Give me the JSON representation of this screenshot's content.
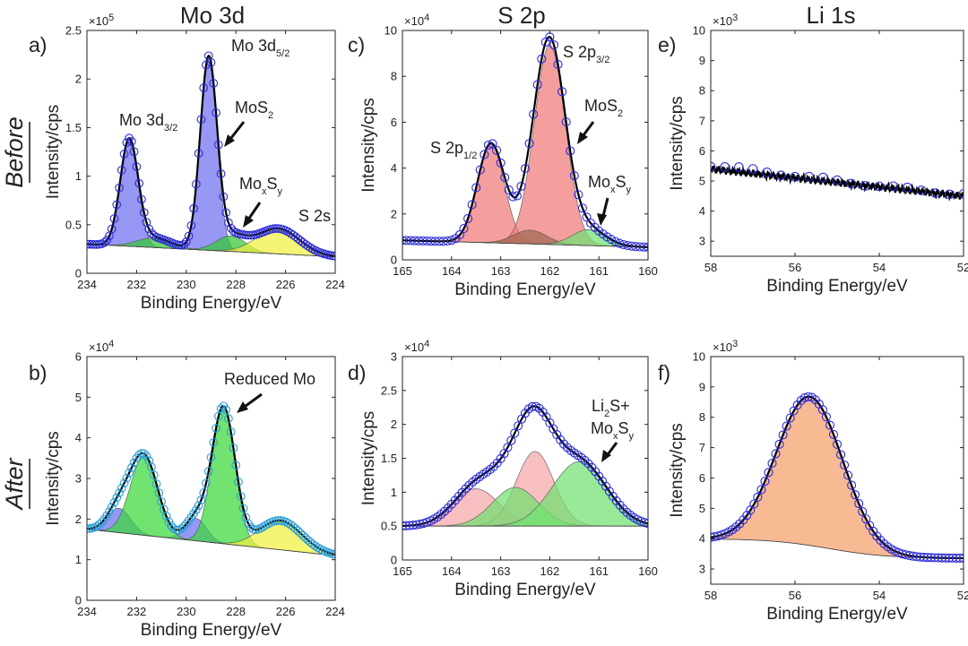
{
  "figure": {
    "column_titles": [
      "Mo 3d",
      "S 2p",
      "Li 1s"
    ],
    "row_labels": [
      "Before",
      "After"
    ],
    "colors": {
      "raw_marker": "#2a2ad8",
      "raw_marker_b": "#2aa0d8",
      "fit": "#000000",
      "mo_blue": "#6f6ff0",
      "mo_green": "#35c835",
      "mo_yellow": "#f0f040",
      "s_red": "#f07878",
      "s_brown": "#a06a50",
      "s_green": "#70e070",
      "s_pink": "#f4a6a6",
      "after_green": "#3ad83a",
      "li_orange": "#f4a06a"
    }
  },
  "chart_data": [
    {
      "id": "a",
      "panel_label": "a)",
      "row": "Before",
      "column": "Mo 3d",
      "type": "area",
      "xlabel": "Binding Energy/eV",
      "ylabel": "Intensity/cps",
      "xlim": [
        234,
        224
      ],
      "xticks": [
        234,
        232,
        230,
        228,
        226,
        224
      ],
      "ylim": [
        0,
        2.5
      ],
      "yticks": [
        0,
        0.5,
        1,
        1.5,
        2,
        2.5
      ],
      "yticklabels": [
        "0",
        "0.5",
        "1",
        "1.5",
        "2",
        "2.5"
      ],
      "y_multiplier": "×10",
      "y_multiplier_exp": "5",
      "baseline": {
        "type": "linear",
        "x": [
          234,
          224
        ],
        "y": [
          0.3,
          0.17
        ]
      },
      "components": [
        {
          "name": "Mo 3d3/2 (MoS2)",
          "color": "mo_blue",
          "center": 232.3,
          "height": 1.08,
          "fwhm": 0.85
        },
        {
          "name": "Mo 3d5/2 (MoS2)",
          "color": "mo_blue",
          "center": 229.1,
          "height": 1.95,
          "fwhm": 0.8
        },
        {
          "name": "Mo 3d3/2 (MoxSy)",
          "color": "mo_green",
          "center": 231.3,
          "height": 0.1,
          "fwhm": 1.6
        },
        {
          "name": "Mo 3d5/2 (MoxSy)",
          "color": "mo_green",
          "center": 228.2,
          "height": 0.16,
          "fwhm": 1.4
        },
        {
          "name": "S 2s",
          "color": "mo_yellow",
          "center": 226.3,
          "height": 0.26,
          "fwhm": 2.0
        }
      ],
      "annotations": [
        {
          "text": "Mo 3d",
          "sub": "3/2"
        },
        {
          "text": "Mo 3d",
          "sub": "5/2"
        },
        {
          "text": "MoS",
          "sub": "2",
          "arrow": true
        },
        {
          "text": "Mo",
          "sub": "x",
          "text2": "S",
          "sub2": "y",
          "arrow": true
        },
        {
          "text": "S 2s"
        }
      ]
    },
    {
      "id": "b",
      "panel_label": "b)",
      "row": "After",
      "column": "Mo 3d",
      "type": "area",
      "xlabel": "Binding Energy/eV",
      "ylabel": "Intensity/cps",
      "xlim": [
        234,
        224
      ],
      "xticks": [
        234,
        232,
        230,
        228,
        226,
        224
      ],
      "ylim": [
        0,
        6
      ],
      "yticks": [
        0,
        1,
        2,
        3,
        4,
        5,
        6
      ],
      "yticklabels": [
        "0",
        "1",
        "2",
        "3",
        "4",
        "5",
        "6"
      ],
      "y_multiplier": "×10",
      "y_multiplier_exp": "4",
      "baseline": {
        "type": "linear",
        "x": [
          234,
          224
        ],
        "y": [
          1.75,
          1.1
        ]
      },
      "components": [
        {
          "name": "Mo 3d3/2 (MoS2)",
          "color": "mo_blue",
          "center": 232.7,
          "height": 0.6,
          "fwhm": 1.1
        },
        {
          "name": "Mo 3d5/2 (MoS2)",
          "color": "mo_blue",
          "center": 229.6,
          "height": 0.55,
          "fwhm": 1.0
        },
        {
          "name": "Mo 3d3/2 (reduced Mo)",
          "color": "after_green",
          "center": 231.7,
          "height": 1.95,
          "fwhm": 1.3
        },
        {
          "name": "Mo 3d5/2 (reduced Mo)",
          "color": "after_green",
          "center": 228.5,
          "height": 3.35,
          "fwhm": 1.1
        },
        {
          "name": "S 2s",
          "color": "mo_yellow",
          "center": 226.2,
          "height": 0.72,
          "fwhm": 2.0
        }
      ],
      "annotations": [
        {
          "text": "Reduced Mo",
          "arrow": true
        }
      ]
    },
    {
      "id": "c",
      "panel_label": "c)",
      "row": "Before",
      "column": "S 2p",
      "type": "area",
      "xlabel": "Binding Energy/eV",
      "ylabel": "Intensity/cps",
      "xlim": [
        165,
        160
      ],
      "xticks": [
        165,
        164,
        163,
        162,
        161,
        160
      ],
      "ylim": [
        0,
        10
      ],
      "yticks": [
        0,
        2,
        4,
        6,
        8,
        10
      ],
      "yticklabels": [
        "0",
        "2",
        "4",
        "6",
        "8",
        "10"
      ],
      "y_multiplier": "×10",
      "y_multiplier_exp": "4",
      "baseline": {
        "type": "linear",
        "x": [
          165,
          160
        ],
        "y": [
          0.85,
          0.55
        ]
      },
      "components": [
        {
          "name": "S 2p1/2 (MoS2)",
          "color": "s_red",
          "center": 163.2,
          "height": 4.3,
          "fwhm": 0.65
        },
        {
          "name": "S 2p3/2 (MoS2)",
          "color": "s_red",
          "center": 162.0,
          "height": 8.7,
          "fwhm": 0.75
        },
        {
          "name": "S 2p (MoxSy)",
          "color": "s_brown",
          "center": 162.4,
          "height": 0.6,
          "fwhm": 0.8
        },
        {
          "name": "S 2p (MoxSy)",
          "color": "s_green",
          "center": 161.2,
          "height": 0.7,
          "fwhm": 0.8
        }
      ],
      "annotations": [
        {
          "text": "S 2p",
          "sub": "1/2"
        },
        {
          "text": "S 2p",
          "sub": "3/2"
        },
        {
          "text": "MoS",
          "sub": "2",
          "arrow": true
        },
        {
          "text": "Mo",
          "sub": "x",
          "text2": "S",
          "sub2": "y",
          "arrow": true
        }
      ]
    },
    {
      "id": "d",
      "panel_label": "d)",
      "row": "After",
      "column": "S 2p",
      "type": "area",
      "xlabel": "Binding Energy/eV",
      "ylabel": "Intensity/cps",
      "xlim": [
        165,
        160
      ],
      "xticks": [
        165,
        164,
        163,
        162,
        161,
        160
      ],
      "ylim": [
        0,
        3
      ],
      "yticks": [
        0,
        0.5,
        1,
        1.5,
        2,
        2.5,
        3
      ],
      "yticklabels": [
        "0",
        "0.5",
        "1",
        "1.5",
        "2",
        "2.5",
        "3"
      ],
      "y_multiplier": "×10",
      "y_multiplier_exp": "4",
      "baseline": {
        "type": "linear",
        "x": [
          165,
          160
        ],
        "y": [
          0.5,
          0.5
        ]
      },
      "components": [
        {
          "name": "S 2p (pink)",
          "color": "s_pink",
          "center": 163.5,
          "height": 0.55,
          "fwhm": 1.1
        },
        {
          "name": "S 2p (pink)",
          "color": "s_pink",
          "center": 162.3,
          "height": 1.1,
          "fwhm": 0.9
        },
        {
          "name": "Li2S + MoxSy",
          "color": "s_green",
          "center": 162.7,
          "height": 0.57,
          "fwhm": 1.1
        },
        {
          "name": "Li2S + MoxSy",
          "color": "s_green",
          "center": 161.4,
          "height": 0.95,
          "fwhm": 1.3
        }
      ],
      "annotations": [
        {
          "text": "Li",
          "sub": "2",
          "text2": "S+",
          "arrow": true
        },
        {
          "text": "Mo",
          "sub": "x",
          "text2": "S",
          "sub2": "y"
        }
      ]
    },
    {
      "id": "e",
      "panel_label": "e)",
      "row": "Before",
      "column": "Li 1s",
      "type": "line",
      "xlabel": "Binding Energy/eV",
      "ylabel": "Intensity/cps",
      "xlim": [
        58,
        52
      ],
      "xticks": [
        58,
        56,
        54,
        52
      ],
      "ylim": [
        2.5,
        10
      ],
      "yticks": [
        3,
        4,
        5,
        6,
        7,
        8,
        9,
        10
      ],
      "yticklabels": [
        "3",
        "4",
        "5",
        "6",
        "7",
        "8",
        "9",
        "10"
      ],
      "y_multiplier": "×10",
      "y_multiplier_exp": "3",
      "baseline": {
        "type": "linear",
        "x": [
          58,
          52
        ],
        "y": [
          5.4,
          4.5
        ]
      },
      "components": [],
      "annotations": []
    },
    {
      "id": "f",
      "panel_label": "f)",
      "row": "After",
      "column": "Li 1s",
      "type": "area",
      "xlabel": "Binding Energy/eV",
      "ylabel": "Intensity/cps",
      "xlim": [
        58,
        52
      ],
      "xticks": [
        58,
        56,
        54,
        52
      ],
      "ylim": [
        2.5,
        10
      ],
      "yticks": [
        3,
        4,
        5,
        6,
        7,
        8,
        9,
        10
      ],
      "yticklabels": [
        "3",
        "4",
        "5",
        "6",
        "7",
        "8",
        "9",
        "10"
      ],
      "y_multiplier": "×10",
      "y_multiplier_exp": "3",
      "baseline": {
        "type": "sigmoid",
        "x": [
          58,
          52
        ],
        "y": [
          4.0,
          3.35
        ],
        "center": 55.2,
        "width": 0.7
      },
      "components": [
        {
          "name": "Li 1s",
          "color": "li_orange",
          "center": 55.65,
          "height": 4.9,
          "fwhm": 1.85
        }
      ],
      "annotations": []
    }
  ]
}
